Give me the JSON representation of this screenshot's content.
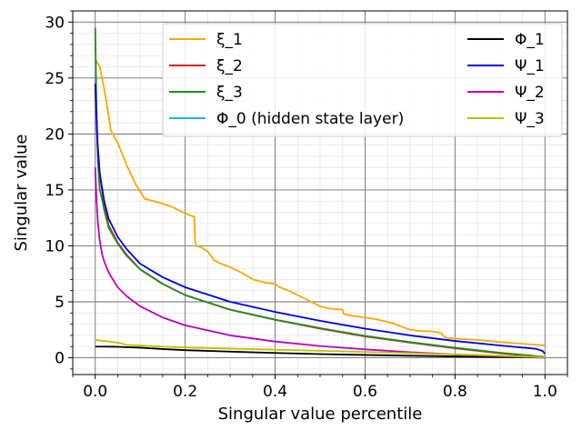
{
  "chart_data": {
    "type": "line",
    "title": "",
    "xlabel": "Singular value percentile",
    "ylabel": "Singular value",
    "xlim": [
      -0.05,
      1.05
    ],
    "ylim": [
      -1.5,
      31
    ],
    "grid": true,
    "minor_grid": true,
    "legend_placement": "top, two columns",
    "x_ticks": [
      0.0,
      0.2,
      0.4,
      0.6,
      0.8,
      1.0
    ],
    "x_tick_labels": [
      "0.0",
      "0.2",
      "0.4",
      "0.6",
      "0.8",
      "1.0"
    ],
    "y_ticks": [
      0,
      5,
      10,
      15,
      20,
      25,
      30
    ],
    "y_tick_labels": [
      "0",
      "5",
      "10",
      "15",
      "20",
      "25",
      "30"
    ],
    "legend_columns": [
      [
        "ξ_1",
        "ξ_2",
        "ξ_3",
        "Φ_0 (hidden state layer)"
      ],
      [
        "Φ_1",
        "Ψ_1",
        "Ψ_2",
        "Ψ_3"
      ]
    ],
    "series": [
      {
        "name": "ξ_1",
        "color": "#ffa500",
        "x": [
          0.0,
          0.01,
          0.02,
          0.035,
          0.05,
          0.07,
          0.09,
          0.11,
          0.14,
          0.17,
          0.2,
          0.22,
          0.222,
          0.225,
          0.235,
          0.25,
          0.265,
          0.28,
          0.3,
          0.33,
          0.35,
          0.38,
          0.4,
          0.41,
          0.43,
          0.45,
          0.48,
          0.5,
          0.52,
          0.55,
          0.553,
          0.58,
          0.6,
          0.63,
          0.65,
          0.66,
          0.68,
          0.7,
          0.72,
          0.75,
          0.77,
          0.775,
          0.78,
          0.8,
          0.85,
          0.9,
          0.95,
          1.0
        ],
        "y": [
          26.7,
          26.0,
          24.0,
          20.3,
          19.2,
          17.2,
          15.5,
          14.2,
          13.9,
          13.5,
          12.9,
          12.6,
          10.5,
          10.0,
          9.9,
          9.5,
          8.7,
          8.4,
          8.1,
          7.5,
          7.0,
          6.7,
          6.6,
          6.3,
          6.0,
          5.6,
          5.0,
          4.6,
          4.4,
          4.3,
          3.9,
          3.7,
          3.6,
          3.4,
          3.2,
          3.1,
          2.8,
          2.5,
          2.4,
          2.35,
          2.2,
          1.9,
          1.8,
          1.7,
          1.6,
          1.4,
          1.25,
          1.1
        ]
      },
      {
        "name": "ξ_2",
        "color": "#e31a1c",
        "x": [
          0.0,
          0.005,
          0.01,
          0.02,
          0.03,
          0.05,
          0.07,
          0.1,
          0.15,
          0.2,
          0.3,
          0.4,
          0.5,
          0.6,
          0.7,
          0.8,
          0.9,
          1.0
        ],
        "y": [
          24.0,
          19.5,
          16.5,
          13.5,
          11.8,
          10.3,
          9.2,
          7.9,
          6.6,
          5.6,
          4.3,
          3.4,
          2.6,
          1.9,
          1.35,
          0.85,
          0.4,
          0.05
        ]
      },
      {
        "name": "ξ_3",
        "color": "#228b22",
        "x": [
          0.0,
          0.003,
          0.006,
          0.01,
          0.015,
          0.02,
          0.03,
          0.05,
          0.07,
          0.1,
          0.15,
          0.2,
          0.3,
          0.4,
          0.5,
          0.6,
          0.7,
          0.8,
          0.9,
          1.0
        ],
        "y": [
          29.5,
          22.0,
          17.5,
          15.0,
          14.2,
          13.2,
          11.6,
          10.2,
          9.1,
          7.9,
          6.6,
          5.6,
          4.3,
          3.4,
          2.65,
          1.95,
          1.4,
          0.9,
          0.45,
          0.08
        ]
      },
      {
        "name": "Φ_0 (hidden state layer)",
        "color": "#17becf",
        "x": [],
        "y": []
      },
      {
        "name": "Φ_1",
        "color": "#000000",
        "x": [
          0.0,
          0.02,
          0.05,
          0.1,
          0.15,
          0.2,
          0.3,
          0.4,
          0.5,
          0.6,
          0.7,
          0.8,
          0.9,
          1.0
        ],
        "y": [
          1.0,
          1.0,
          0.98,
          0.9,
          0.78,
          0.68,
          0.55,
          0.43,
          0.33,
          0.25,
          0.18,
          0.12,
          0.07,
          0.02
        ]
      },
      {
        "name": "Ψ_1",
        "color": "#0000e6",
        "x": [
          0.0,
          0.005,
          0.01,
          0.02,
          0.03,
          0.05,
          0.07,
          0.1,
          0.15,
          0.2,
          0.3,
          0.4,
          0.5,
          0.6,
          0.7,
          0.8,
          0.9,
          0.98,
          0.995,
          1.0
        ],
        "y": [
          24.5,
          19.0,
          16.5,
          14.0,
          12.4,
          10.8,
          9.7,
          8.4,
          7.2,
          6.3,
          5.0,
          4.1,
          3.3,
          2.6,
          2.0,
          1.5,
          1.1,
          0.8,
          0.6,
          0.35
        ]
      },
      {
        "name": "Ψ_2",
        "color": "#bf00bf",
        "x": [
          0.0,
          0.003,
          0.006,
          0.01,
          0.015,
          0.02,
          0.03,
          0.05,
          0.07,
          0.1,
          0.15,
          0.2,
          0.3,
          0.4,
          0.5,
          0.6,
          0.7,
          0.8,
          0.9,
          1.0
        ],
        "y": [
          17.0,
          14.0,
          12.0,
          10.5,
          9.3,
          8.6,
          7.6,
          6.3,
          5.5,
          4.6,
          3.6,
          2.9,
          2.0,
          1.45,
          1.05,
          0.75,
          0.5,
          0.3,
          0.15,
          0.02
        ]
      },
      {
        "name": "Ψ_3",
        "color": "#bfbf00",
        "x": [
          0.0,
          0.02,
          0.05,
          0.07,
          0.1,
          0.15,
          0.2,
          0.3,
          0.4,
          0.5,
          0.6,
          0.7,
          0.8,
          0.9,
          1.0
        ],
        "y": [
          1.6,
          1.5,
          1.35,
          1.15,
          1.1,
          1.0,
          0.92,
          0.82,
          0.72,
          0.62,
          0.52,
          0.42,
          0.3,
          0.18,
          0.05
        ]
      }
    ]
  }
}
